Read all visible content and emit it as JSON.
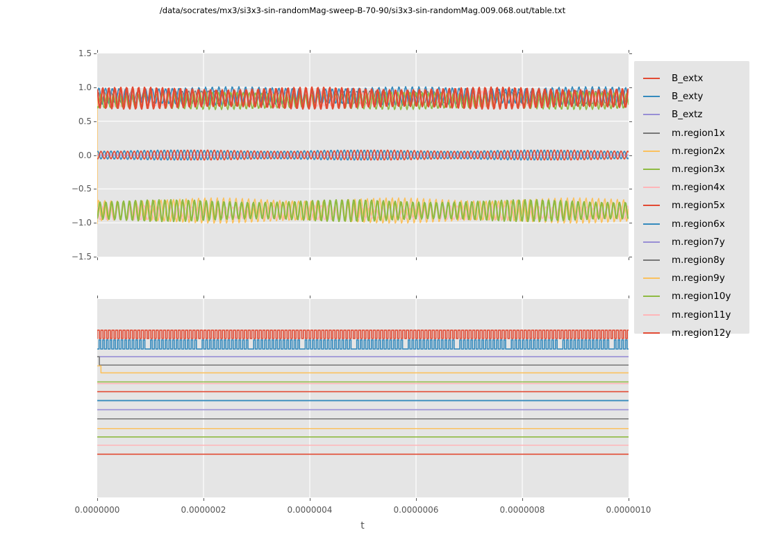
{
  "title": "/data/socrates/mx3/si3x3-sin-randomMag-sweep-B-70-90/si3x3-sin-randomMag.009.068.out/table.txt",
  "xlabel": "t",
  "palette": {
    "red": "#E24A33",
    "blue": "#348ABD",
    "purple": "#988ED5",
    "gray": "#777777",
    "orange": "#FBC15E",
    "green": "#8EBA42",
    "pink": "#FFB5B8"
  },
  "legend": {
    "entries": [
      {
        "label": "B_extx",
        "color": "red"
      },
      {
        "label": "B_exty",
        "color": "blue"
      },
      {
        "label": "B_extz",
        "color": "purple"
      },
      {
        "label": "m.region1x",
        "color": "gray"
      },
      {
        "label": "m.region2x",
        "color": "orange"
      },
      {
        "label": "m.region3x",
        "color": "green"
      },
      {
        "label": "m.region4x",
        "color": "pink"
      },
      {
        "label": "m.region5x",
        "color": "red"
      },
      {
        "label": "m.region6x",
        "color": "blue"
      },
      {
        "label": "m.region7y",
        "color": "purple"
      },
      {
        "label": "m.region8y",
        "color": "gray"
      },
      {
        "label": "m.region9y",
        "color": "orange"
      },
      {
        "label": "m.region10y",
        "color": "green"
      },
      {
        "label": "m.region11y",
        "color": "pink"
      },
      {
        "label": "m.region12y",
        "color": "red"
      }
    ]
  },
  "chart_data": {
    "type": "line",
    "x_range": [
      0,
      1e-06
    ],
    "x_tick_labels": [
      "0.0000000",
      "0.0000002",
      "0.0000004",
      "0.0000006",
      "0.0000008",
      "0.0000010"
    ],
    "xlabel": "t",
    "grid": "white-on-gray (ggplot style)",
    "legend_position": "outside-right",
    "top_plot": {
      "ylim": [
        -1.5,
        1.5
      ],
      "y_tick_labels": [
        "1.5",
        "1.0",
        "0.5",
        "0.0",
        "−0.5",
        "−1.0",
        "−1.5"
      ],
      "description": "three dense oscillation bands: ~+0.85 (regions x+), ~0 (B_ext sine drive), ~-0.85 (regions x-); orange transient spike at t=0",
      "series": [
        {
          "name": "region2x-transient",
          "color": "orange",
          "type": "vline",
          "x_frac": 0.0,
          "from": 0.92,
          "to": -1.02,
          "w": 1.6
        },
        {
          "name": "region1x",
          "color": "gray",
          "type": "sine",
          "center": 0.85,
          "amp": 0.1,
          "period": 9.3,
          "phase": 0.5,
          "w": 1.3
        },
        {
          "name": "region4x",
          "color": "pink",
          "type": "sine",
          "center": 0.83,
          "amp": 0.12,
          "period": 10.1,
          "phase": 2.5,
          "w": 1.3
        },
        {
          "name": "region6x",
          "color": "blue",
          "type": "sine",
          "center": 0.87,
          "amp": 0.14,
          "period": 9.6,
          "phase": 0.0,
          "w": 1.6
        },
        {
          "name": "region5x-band",
          "color": "green",
          "type": "sine",
          "center": 0.8,
          "amp": 0.13,
          "period": 8.9,
          "phase": 4.0,
          "w": 1.6
        },
        {
          "name": "region-x-main",
          "color": "red",
          "type": "sine",
          "center": 0.84,
          "amp": 0.16,
          "period": 8.6,
          "phase": 2.0,
          "w": 2.4
        },
        {
          "name": "B_extz",
          "color": "purple",
          "type": "flat",
          "value": 0.0,
          "w": 1.4
        },
        {
          "name": "B_exty",
          "color": "blue",
          "type": "sine",
          "center": 0.0,
          "amp": 0.075,
          "period": 9.6,
          "phase": 1.2,
          "w": 1.6
        },
        {
          "name": "B_extx",
          "color": "red",
          "type": "sine",
          "center": 0.0,
          "amp": 0.075,
          "period": 9.6,
          "phase": 4.34,
          "w": 1.6
        },
        {
          "name": "region2x",
          "color": "orange",
          "type": "sine",
          "center": -0.82,
          "amp": 0.19,
          "period": 9.0,
          "phase": 0.3,
          "w": 1.5
        },
        {
          "name": "region-neg-pink",
          "color": "pink",
          "type": "sine",
          "center": -0.85,
          "amp": 0.11,
          "period": 9.8,
          "phase": 2.2,
          "w": 1.3
        },
        {
          "name": "region3x",
          "color": "green",
          "type": "sine",
          "center": -0.82,
          "amp": 0.16,
          "period": 8.5,
          "phase": 5.0,
          "w": 2.2
        }
      ]
    },
    "bottom_plot": {
      "y_tick_labels": [],
      "description": "y positions given as fraction of plot height from top; no y tick labels visible",
      "series": [
        {
          "name": "sq-red",
          "color": "red",
          "type": "square",
          "high": 0.157,
          "low": 0.199,
          "period": 5.3,
          "duty": 0.56,
          "phase": 0.0,
          "w": 1.6
        },
        {
          "name": "sq-blue",
          "color": "blue",
          "type": "square",
          "high": 0.206,
          "low": 0.252,
          "period": 5.3,
          "duty": 0.44,
          "phase": 0.5,
          "skip_every": 14,
          "w": 1.6
        },
        {
          "name": "flat-purple",
          "color": "purple",
          "type": "flat",
          "value": 0.291,
          "w": 1.6
        },
        {
          "name": "step-gray",
          "color": "gray",
          "type": "step",
          "start": 0.291,
          "value": 0.333,
          "step_frac": 0.004,
          "w": 1.6
        },
        {
          "name": "step-orange",
          "color": "orange",
          "type": "step",
          "start": 0.337,
          "value": 0.372,
          "step_frac": 0.007,
          "w": 1.6
        },
        {
          "name": "flat-green-a",
          "color": "green",
          "type": "flat",
          "value": 0.418,
          "w": 1.5
        },
        {
          "name": "flat-pink-a",
          "color": "pink",
          "type": "flat",
          "value": 0.426,
          "w": 1.5
        },
        {
          "name": "flat-red-a",
          "color": "red",
          "type": "flat",
          "value": 0.467,
          "w": 1.6
        },
        {
          "name": "flat-blue",
          "color": "blue",
          "type": "flat",
          "value": 0.512,
          "w": 1.9
        },
        {
          "name": "flat-purple2",
          "color": "purple",
          "type": "flat",
          "value": 0.558,
          "w": 1.6
        },
        {
          "name": "flat-gray",
          "color": "gray",
          "type": "flat",
          "value": 0.604,
          "w": 1.6
        },
        {
          "name": "flat-orange",
          "color": "orange",
          "type": "flat",
          "value": 0.653,
          "w": 1.6
        },
        {
          "name": "flat-green-b",
          "color": "green",
          "type": "flat",
          "value": 0.695,
          "w": 1.6
        },
        {
          "name": "flat-pink-b",
          "color": "pink",
          "type": "flat",
          "value": 0.737,
          "w": 1.5
        },
        {
          "name": "flat-red-b",
          "color": "red",
          "type": "flat",
          "value": 0.782,
          "w": 1.6
        }
      ]
    }
  }
}
